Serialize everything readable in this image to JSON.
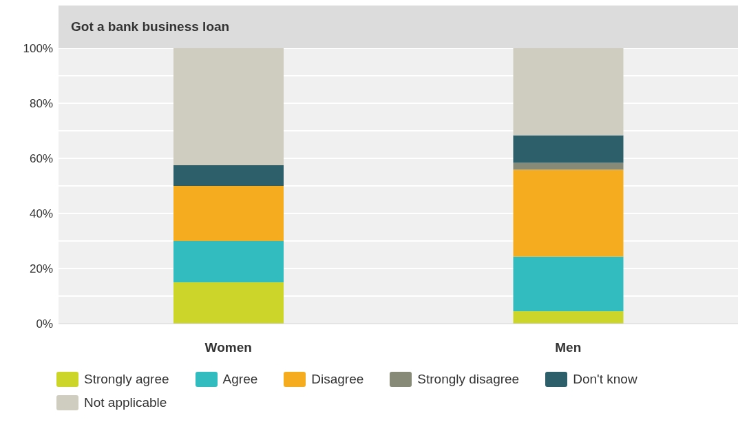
{
  "chart_data": {
    "type": "bar",
    "title": "Got a bank business loan",
    "categories": [
      "Women",
      "Men"
    ],
    "stacked": true,
    "series": [
      {
        "name": "Strongly agree",
        "color": "#ccd52a",
        "values": [
          15,
          4.5
        ]
      },
      {
        "name": "Agree",
        "color": "#33bcc0",
        "values": [
          15,
          19.8
        ]
      },
      {
        "name": "Disagree",
        "color": "#f5ad1f",
        "values": [
          20,
          31.6
        ]
      },
      {
        "name": "Strongly disagree",
        "color": "#878a76",
        "values": [
          null,
          2.5
        ]
      },
      {
        "name": "Don't know",
        "color": "#2d5f6b",
        "values": [
          7.5,
          10
        ]
      },
      {
        "name": "Not applicable",
        "color": "#cfcdbf",
        "values": [
          42.5,
          31.6
        ]
      }
    ],
    "ylim": [
      0,
      100
    ],
    "yticks": [
      {
        "value": 0,
        "label": "0%"
      },
      {
        "value": 10,
        "label": null
      },
      {
        "value": 20,
        "label": "20%"
      },
      {
        "value": 30,
        "label": null
      },
      {
        "value": 40,
        "label": "40%"
      },
      {
        "value": 50,
        "label": null
      },
      {
        "value": 60,
        "label": "60%"
      },
      {
        "value": 70,
        "label": null
      },
      {
        "value": 80,
        "label": "80%"
      },
      {
        "value": 90,
        "label": null
      },
      {
        "value": 100,
        "label": "100%"
      }
    ],
    "grid": "y",
    "legend": "bottom"
  }
}
